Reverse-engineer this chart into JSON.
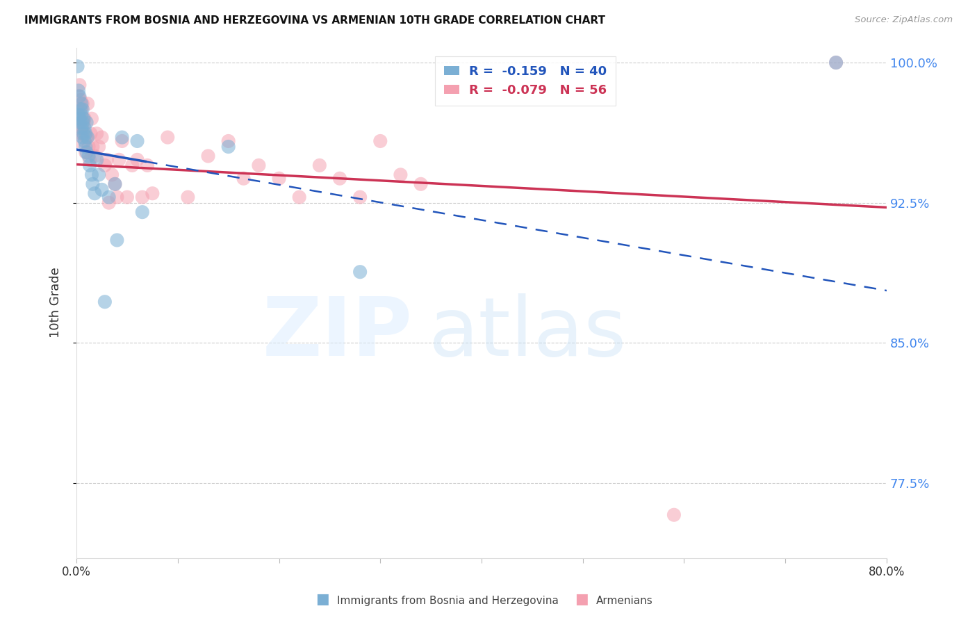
{
  "title": "IMMIGRANTS FROM BOSNIA AND HERZEGOVINA VS ARMENIAN 10TH GRADE CORRELATION CHART",
  "source": "Source: ZipAtlas.com",
  "ylabel": "10th Grade",
  "xlim": [
    0.0,
    0.8
  ],
  "ylim": [
    0.735,
    1.008
  ],
  "xtick_vals": [
    0.0,
    0.1,
    0.2,
    0.3,
    0.4,
    0.5,
    0.6,
    0.7,
    0.8
  ],
  "xticklabels": [
    "0.0%",
    "",
    "",
    "",
    "",
    "",
    "",
    "",
    "80.0%"
  ],
  "ytick_labels": [
    "77.5%",
    "85.0%",
    "92.5%",
    "100.0%"
  ],
  "ytick_values": [
    0.775,
    0.85,
    0.925,
    1.0
  ],
  "blue_R": -0.159,
  "blue_N": 40,
  "pink_R": -0.079,
  "pink_N": 56,
  "blue_color": "#7BAFD4",
  "pink_color": "#F4A0B0",
  "blue_trend_color": "#2255BB",
  "pink_trend_color": "#CC3355",
  "legend_label_blue": "Immigrants from Bosnia and Herzegovina",
  "legend_label_pink": "Armenians",
  "blue_solid_xend": 0.068,
  "blue_trend_x0": 0.0,
  "blue_trend_y0": 0.9535,
  "blue_trend_x1": 0.8,
  "blue_trend_y1": 0.878,
  "pink_trend_x0": 0.0,
  "pink_trend_y0": 0.9455,
  "pink_trend_x1": 0.8,
  "pink_trend_y1": 0.9225,
  "blue_points_x": [
    0.001,
    0.002,
    0.002,
    0.003,
    0.003,
    0.004,
    0.004,
    0.005,
    0.005,
    0.005,
    0.006,
    0.006,
    0.006,
    0.007,
    0.007,
    0.008,
    0.008,
    0.009,
    0.009,
    0.01,
    0.01,
    0.011,
    0.012,
    0.013,
    0.015,
    0.016,
    0.018,
    0.02,
    0.022,
    0.025,
    0.028,
    0.032,
    0.038,
    0.04,
    0.045,
    0.06,
    0.065,
    0.15,
    0.28,
    0.75
  ],
  "blue_points_y": [
    0.998,
    0.972,
    0.985,
    0.97,
    0.982,
    0.968,
    0.975,
    0.978,
    0.965,
    0.972,
    0.968,
    0.975,
    0.96,
    0.962,
    0.97,
    0.958,
    0.965,
    0.962,
    0.955,
    0.968,
    0.952,
    0.96,
    0.95,
    0.945,
    0.94,
    0.935,
    0.93,
    0.948,
    0.94,
    0.932,
    0.872,
    0.928,
    0.935,
    0.905,
    0.96,
    0.958,
    0.92,
    0.955,
    0.888,
    1.0
  ],
  "pink_points_x": [
    0.001,
    0.001,
    0.002,
    0.002,
    0.003,
    0.003,
    0.004,
    0.004,
    0.005,
    0.005,
    0.006,
    0.006,
    0.007,
    0.008,
    0.009,
    0.01,
    0.011,
    0.012,
    0.013,
    0.014,
    0.015,
    0.016,
    0.018,
    0.02,
    0.022,
    0.025,
    0.028,
    0.03,
    0.032,
    0.035,
    0.038,
    0.04,
    0.042,
    0.045,
    0.05,
    0.055,
    0.06,
    0.065,
    0.07,
    0.075,
    0.09,
    0.11,
    0.13,
    0.15,
    0.165,
    0.18,
    0.2,
    0.22,
    0.24,
    0.26,
    0.28,
    0.3,
    0.32,
    0.34,
    0.59,
    0.75
  ],
  "pink_points_y": [
    0.975,
    0.958,
    0.982,
    0.965,
    0.988,
    0.972,
    0.98,
    0.968,
    0.975,
    0.962,
    0.978,
    0.965,
    0.968,
    0.97,
    0.952,
    0.96,
    0.978,
    0.955,
    0.948,
    0.962,
    0.97,
    0.955,
    0.95,
    0.962,
    0.955,
    0.96,
    0.945,
    0.948,
    0.925,
    0.94,
    0.935,
    0.928,
    0.948,
    0.958,
    0.928,
    0.945,
    0.948,
    0.928,
    0.945,
    0.93,
    0.96,
    0.928,
    0.95,
    0.958,
    0.938,
    0.945,
    0.938,
    0.928,
    0.945,
    0.938,
    0.928,
    0.958,
    0.94,
    0.935,
    0.758,
    1.0
  ]
}
